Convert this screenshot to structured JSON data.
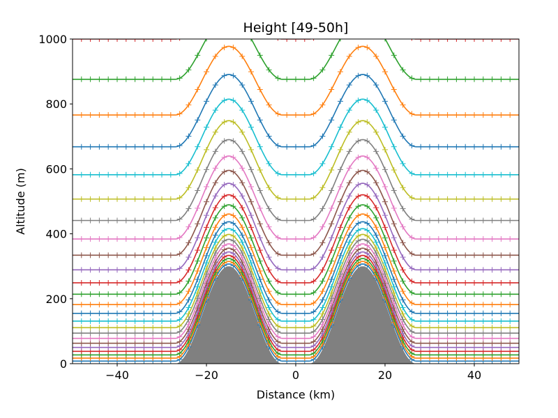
{
  "chart_data": {
    "type": "line",
    "title": "Height [49-50h]",
    "xlabel": "Distance (km)",
    "ylabel": "Altitude (m)",
    "xlim": [
      -50,
      50
    ],
    "ylim": [
      0,
      1000
    ],
    "x_ticks": [
      -40,
      -20,
      0,
      20,
      40
    ],
    "x_tick_labels": [
      "−40",
      "−20",
      "0",
      "20",
      "40"
    ],
    "y_ticks": [
      0,
      200,
      400,
      600,
      800,
      1000
    ],
    "y_tick_labels": [
      "0",
      "200",
      "400",
      "600",
      "800",
      "1000"
    ],
    "grid": false,
    "legend": "none",
    "marker": "+",
    "x_sample_spacing_km": 2,
    "terrain": {
      "fill_color": "#808080",
      "height_m": 300,
      "peaks_km": [
        -15,
        15
      ],
      "half_width_km": 12
    },
    "level_base_heights_m": [
      8,
      17,
      27,
      38,
      50,
      63,
      78,
      94,
      111,
      131,
      155,
      182,
      214,
      249,
      289,
      334,
      384,
      441,
      507,
      582,
      668,
      766,
      876,
      1000
    ],
    "colors": [
      "#1f77b4",
      "#ff7f0e",
      "#2ca02c",
      "#d62728",
      "#9467bd",
      "#8c564b",
      "#e377c2",
      "#7f7f7f",
      "#bcbd22",
      "#17becf"
    ]
  }
}
